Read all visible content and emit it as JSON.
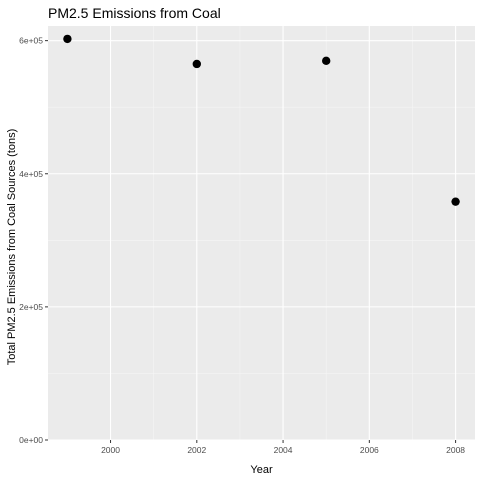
{
  "chart_data": {
    "type": "scatter",
    "title": "PM2.5 Emissions from Coal",
    "xlabel": "Year",
    "ylabel": "Total PM2.5 Emissions from Coal Sources (tons)",
    "x": [
      1999,
      2002,
      2005,
      2008
    ],
    "series": [
      {
        "values": [
          602624,
          564940,
          569655,
          358084
        ]
      }
    ],
    "xlim": [
      1998.55,
      2008.45
    ],
    "ylim": [
      0,
      622000
    ],
    "xticks": [
      2000,
      2002,
      2004,
      2006,
      2008
    ],
    "xtick_labels": [
      "2000",
      "2002",
      "2004",
      "2006",
      "2008"
    ],
    "yticks": [
      0,
      200000,
      400000,
      600000
    ],
    "ytick_labels": [
      "0e+00",
      "2e+05",
      "4e+05",
      "6e+05"
    ],
    "grid": true,
    "legend": "none",
    "colors": {
      "panel_background": "#ebebeb",
      "grid_major": "#ffffff",
      "grid_minor": "#f5f5f5",
      "point": "#000000"
    }
  }
}
